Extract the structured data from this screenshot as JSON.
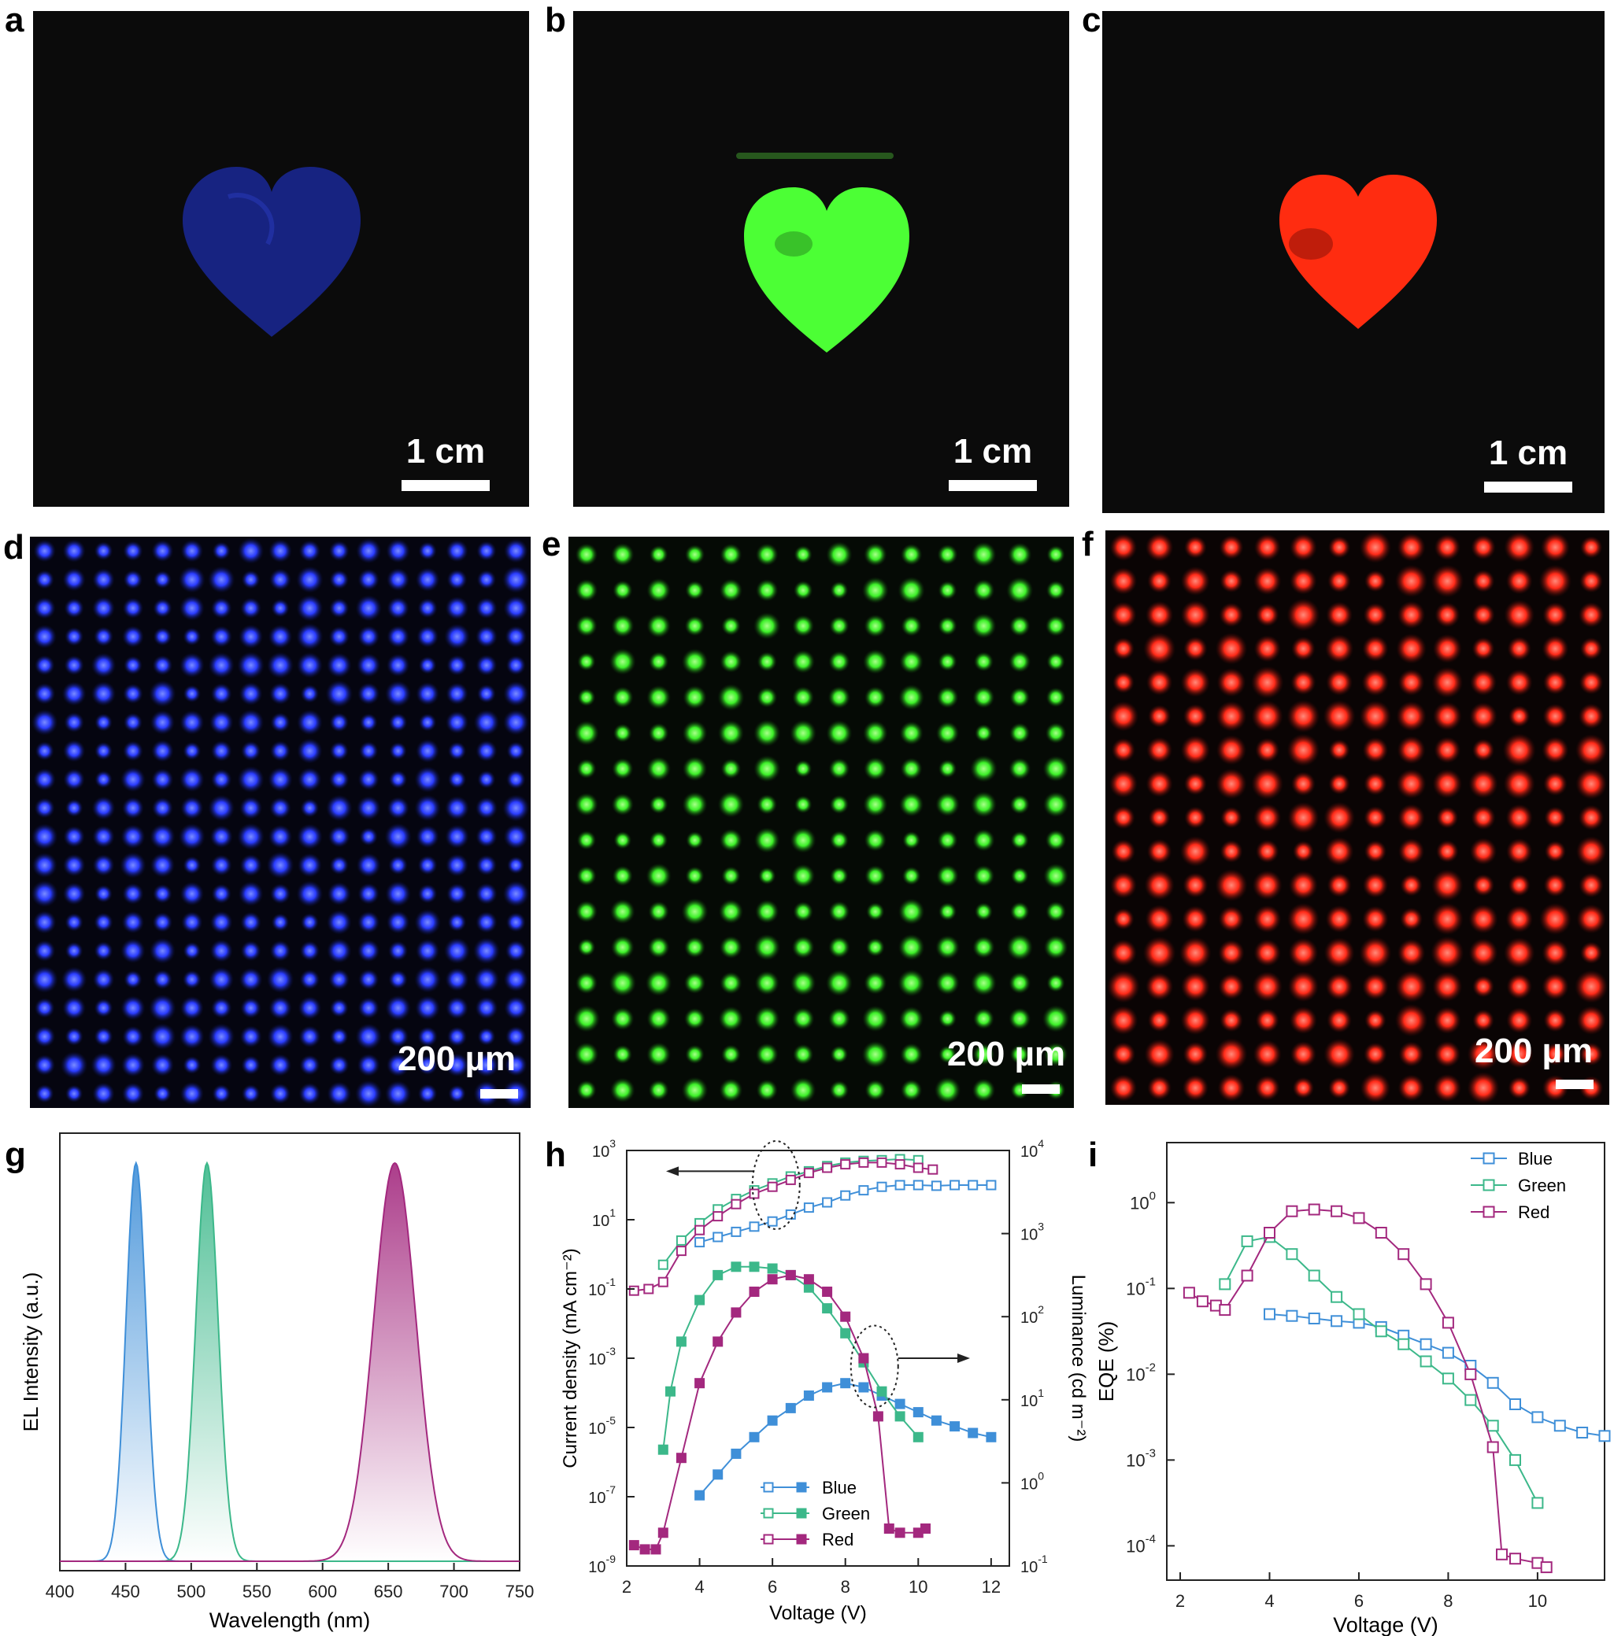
{
  "panels": {
    "a": {
      "letter": "a",
      "scale": "1 cm",
      "color": "#2233bb"
    },
    "b": {
      "letter": "b",
      "scale": "1 cm",
      "color": "#44ff33"
    },
    "c": {
      "letter": "c",
      "scale": "1 cm",
      "color": "#ff2a10"
    },
    "d": {
      "letter": "d",
      "scale": "200 µm",
      "color": "#2a3cff"
    },
    "e": {
      "letter": "e",
      "scale": "200 µm",
      "color": "#3cf028"
    },
    "f": {
      "letter": "f",
      "scale": "200 µm",
      "color": "#ff2a18"
    },
    "g": {
      "letter": "g"
    },
    "h": {
      "letter": "h"
    },
    "i": {
      "letter": "i"
    }
  },
  "colors": {
    "blue": "#3f8fd8",
    "green": "#3cb88a",
    "red": "#a3287e"
  },
  "chart_data": [
    {
      "id": "g",
      "type": "area",
      "xlabel": "Wavelength (nm)",
      "ylabel": "EL Intensity (a.u.)",
      "xlim": [
        400,
        750
      ],
      "xticks": [
        400,
        450,
        500,
        550,
        600,
        650,
        700,
        750
      ],
      "series": [
        {
          "name": "Blue",
          "color": "#3f8fd8",
          "peak": 458,
          "fwhm": 18
        },
        {
          "name": "Green",
          "color": "#3cb88a",
          "peak": 512,
          "fwhm": 20
        },
        {
          "name": "Red",
          "color": "#a3287e",
          "peak": 655,
          "fwhm": 38
        }
      ]
    },
    {
      "id": "h",
      "type": "line",
      "xlabel": "Voltage (V)",
      "ylabel": "Current density (mA cm⁻²)",
      "y2label": "Luminance (cd m⁻²)",
      "xlim": [
        2,
        12.5
      ],
      "xticks": [
        "2",
        "4",
        "6",
        "8",
        "10",
        "12"
      ],
      "ylim_log": [
        -9,
        3
      ],
      "yticks": [
        {
          "b": "10",
          "e": "3",
          "v": 3
        },
        {
          "b": "10",
          "e": "1",
          "v": 1
        },
        {
          "b": "10",
          "e": "-1",
          "v": -1
        },
        {
          "b": "10",
          "e": "-3",
          "v": -3
        },
        {
          "b": "10",
          "e": "-5",
          "v": -5
        },
        {
          "b": "10",
          "e": "-7",
          "v": -7
        },
        {
          "b": "10",
          "e": "-9",
          "v": -9
        }
      ],
      "y2lim_log": [
        -1,
        4
      ],
      "y2ticks": [
        {
          "b": "10",
          "e": "4",
          "v": 4
        },
        {
          "b": "10",
          "e": "3",
          "v": 3
        },
        {
          "b": "10",
          "e": "2",
          "v": 2
        },
        {
          "b": "10",
          "e": "1",
          "v": 1
        },
        {
          "b": "10",
          "e": "0",
          "v": 0
        },
        {
          "b": "10",
          "e": "-1",
          "v": -1
        }
      ],
      "legend": [
        "Blue",
        "Green",
        "Red"
      ],
      "legend_position": "bottom-left",
      "current_density_log10": {
        "Blue": {
          "x": [
            4.0,
            4.5,
            5.0,
            5.5,
            6.0,
            6.5,
            7.0,
            7.5,
            8.0,
            8.5,
            9.0,
            9.5,
            10.0,
            10.5,
            11.0,
            11.5,
            12.0
          ],
          "y": [
            0.35,
            0.5,
            0.65,
            0.8,
            0.95,
            1.15,
            1.35,
            1.5,
            1.7,
            1.85,
            1.95,
            2.0,
            2.0,
            1.98,
            2.0,
            2.0,
            2.0
          ]
        },
        "Green": {
          "x": [
            3.0,
            3.5,
            4.0,
            4.5,
            5.0,
            5.5,
            6.0,
            6.5,
            7.0,
            7.5,
            8.0,
            8.5,
            9.0,
            9.5,
            10.0
          ],
          "y": [
            -0.3,
            0.4,
            0.9,
            1.3,
            1.6,
            1.85,
            2.05,
            2.25,
            2.4,
            2.55,
            2.65,
            2.7,
            2.72,
            2.75,
            2.72
          ]
        },
        "Red": {
          "x": [
            2.2,
            2.6,
            3.0,
            3.5,
            4.0,
            4.5,
            5.0,
            5.5,
            6.0,
            6.5,
            7.0,
            7.5,
            8.0,
            8.5,
            9.0,
            9.5,
            10.0,
            10.4
          ],
          "y": [
            -1.05,
            -1.0,
            -0.8,
            0.1,
            0.7,
            1.1,
            1.45,
            1.75,
            1.95,
            2.15,
            2.35,
            2.5,
            2.6,
            2.65,
            2.65,
            2.6,
            2.5,
            2.45
          ]
        }
      },
      "luminance_log10": {
        "Blue": {
          "x": [
            4.0,
            4.5,
            5.0,
            5.5,
            6.0,
            6.5,
            7.0,
            7.5,
            8.0,
            8.5,
            9.0,
            9.5,
            10.0,
            10.5,
            11.0,
            11.5,
            12.0
          ],
          "y": [
            -0.15,
            0.1,
            0.35,
            0.55,
            0.75,
            0.9,
            1.05,
            1.15,
            1.2,
            1.15,
            1.05,
            0.95,
            0.85,
            0.75,
            0.68,
            0.6,
            0.55
          ]
        },
        "Green": {
          "x": [
            3.0,
            3.2,
            3.5,
            4.0,
            4.5,
            5.0,
            5.5,
            6.0,
            6.5,
            7.0,
            7.5,
            8.0,
            8.5,
            9.0,
            9.5,
            10.0
          ],
          "y": [
            0.4,
            1.1,
            1.7,
            2.2,
            2.5,
            2.6,
            2.6,
            2.58,
            2.5,
            2.35,
            2.1,
            1.8,
            1.45,
            1.1,
            0.8,
            0.55
          ]
        },
        "Red": {
          "x": [
            2.2,
            2.5,
            2.8,
            3.0,
            3.5,
            4.0,
            4.5,
            5.0,
            5.5,
            6.0,
            6.5,
            7.0,
            7.5,
            8.0,
            8.5,
            8.9,
            9.2,
            9.5,
            10.0,
            10.2
          ],
          "y": [
            -0.75,
            -0.8,
            -0.8,
            -0.6,
            0.3,
            1.2,
            1.7,
            2.05,
            2.3,
            2.45,
            2.5,
            2.45,
            2.3,
            2.0,
            1.5,
            0.8,
            -0.55,
            -0.6,
            -0.6,
            -0.55
          ]
        }
      }
    },
    {
      "id": "i",
      "type": "line",
      "xlabel": "Voltage (V)",
      "ylabel": "EQE (%)",
      "xlim": [
        1.7,
        11.5
      ],
      "xticks": [
        "2",
        "4",
        "6",
        "8",
        "10"
      ],
      "ylim_log": [
        -4.4,
        0.7
      ],
      "yticks": [
        {
          "b": "10",
          "e": "0",
          "v": 0
        },
        {
          "b": "10",
          "e": "-1",
          "v": -1
        },
        {
          "b": "10",
          "e": "-2",
          "v": -2
        },
        {
          "b": "10",
          "e": "-3",
          "v": -3
        },
        {
          "b": "10",
          "e": "-4",
          "v": -4
        }
      ],
      "legend": [
        "Blue",
        "Green",
        "Red"
      ],
      "legend_position": "top-right",
      "eqe_log10": {
        "Blue": {
          "x": [
            4.0,
            4.5,
            5.0,
            5.5,
            6.0,
            6.5,
            7.0,
            7.5,
            8.0,
            8.5,
            9.0,
            9.5,
            10.0,
            10.5,
            11.0,
            11.5
          ],
          "y": [
            -1.3,
            -1.32,
            -1.35,
            -1.38,
            -1.4,
            -1.45,
            -1.55,
            -1.65,
            -1.75,
            -1.9,
            -2.1,
            -2.35,
            -2.5,
            -2.6,
            -2.68,
            -2.72
          ]
        },
        "Green": {
          "x": [
            3.0,
            3.5,
            4.0,
            4.5,
            5.0,
            5.5,
            6.0,
            6.5,
            7.0,
            7.5,
            8.0,
            8.5,
            9.0,
            9.5,
            10.0
          ],
          "y": [
            -0.95,
            -0.45,
            -0.4,
            -0.6,
            -0.85,
            -1.1,
            -1.3,
            -1.5,
            -1.65,
            -1.85,
            -2.05,
            -2.3,
            -2.6,
            -3.0,
            -3.5
          ]
        },
        "Red": {
          "x": [
            2.2,
            2.5,
            2.8,
            3.0,
            3.5,
            4.0,
            4.5,
            5.0,
            5.5,
            6.0,
            6.5,
            7.0,
            7.5,
            8.0,
            8.5,
            9.0,
            9.2,
            9.5,
            10.0,
            10.2
          ],
          "y": [
            -1.05,
            -1.15,
            -1.2,
            -1.25,
            -0.85,
            -0.35,
            -0.1,
            -0.08,
            -0.1,
            -0.18,
            -0.35,
            -0.6,
            -0.95,
            -1.4,
            -2.0,
            -2.85,
            -4.1,
            -4.15,
            -4.2,
            -4.25
          ]
        }
      }
    }
  ]
}
